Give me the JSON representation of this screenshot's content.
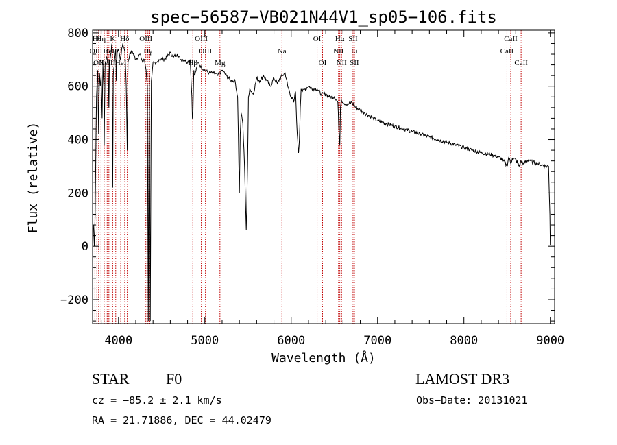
{
  "chart_data": {
    "type": "line",
    "title": "spec−56587−VB021N44V1_sp05−106.fits",
    "xlabel": "Wavelength (Å)",
    "ylabel": "Flux (relative)",
    "xlim": [
      3700,
      9050
    ],
    "ylim": [
      -290,
      810
    ],
    "xticks": [
      4000,
      5000,
      6000,
      7000,
      8000,
      9000
    ],
    "yticks": [
      -200,
      0,
      200,
      400,
      600,
      800
    ],
    "ytick_labels": [
      "−200",
      "0",
      "200",
      "400",
      "600",
      "800"
    ],
    "grid": false,
    "series": [
      {
        "name": "spectrum",
        "color": "#000000",
        "x": [
          3710,
          3720,
          3730,
          3745,
          3760,
          3770,
          3780,
          3790,
          3800,
          3810,
          3820,
          3830,
          3835,
          3845,
          3860,
          3880,
          3889,
          3895,
          3910,
          3925,
          3933,
          3940,
          3955,
          3968,
          3975,
          3985,
          4000,
          4020,
          4050,
          4075,
          4090,
          4102,
          4110,
          4130,
          4160,
          4200,
          4250,
          4280,
          4300,
          4320,
          4335,
          4340,
          4345,
          4352,
          4357,
          4362,
          4368,
          4380,
          4400,
          4430,
          4470,
          4520,
          4560,
          4600,
          4640,
          4680,
          4720,
          4760,
          4800,
          4830,
          4850,
          4856,
          4861,
          4866,
          4872,
          4885,
          4920,
          4960,
          5000,
          5050,
          5100,
          5150,
          5200,
          5250,
          5300,
          5350,
          5380,
          5400,
          5410,
          5420,
          5440,
          5460,
          5480,
          5495,
          5505,
          5520,
          5540,
          5560,
          5600,
          5640,
          5680,
          5720,
          5760,
          5800,
          5840,
          5870,
          5900,
          5930,
          5960,
          6000,
          6030,
          6050,
          6070,
          6085,
          6095,
          6105,
          6115,
          6130,
          6160,
          6200,
          6250,
          6300,
          6350,
          6400,
          6450,
          6500,
          6540,
          6555,
          6563,
          6570,
          6580,
          6600,
          6650,
          6700,
          6750,
          6800,
          6850,
          6900,
          6950,
          7000,
          7100,
          7200,
          7300,
          7400,
          7500,
          7600,
          7700,
          7800,
          7900,
          8000,
          8100,
          8200,
          8300,
          8400,
          8460,
          8498,
          8520,
          8542,
          8560,
          8600,
          8640,
          8662,
          8690,
          8750,
          8800,
          8850,
          8900,
          8950,
          8980,
          8990,
          8995,
          9000
        ],
        "y": [
          80,
          0,
          120,
          560,
          660,
          420,
          650,
          600,
          640,
          480,
          680,
          600,
          380,
          680,
          710,
          690,
          520,
          690,
          720,
          760,
          220,
          640,
          700,
          740,
          620,
          730,
          740,
          700,
          760,
          730,
          600,
          360,
          690,
          720,
          730,
          700,
          720,
          690,
          700,
          660,
          600,
          160,
          -280,
          300,
          640,
          200,
          -280,
          620,
          690,
          680,
          700,
          700,
          710,
          725,
          710,
          720,
          700,
          700,
          690,
          700,
          560,
          480,
          480,
          560,
          660,
          640,
          690,
          670,
          660,
          650,
          650,
          640,
          660,
          640,
          620,
          620,
          560,
          200,
          420,
          500,
          460,
          300,
          60,
          300,
          560,
          590,
          580,
          570,
          630,
          620,
          640,
          620,
          600,
          630,
          610,
          630,
          640,
          650,
          600,
          560,
          540,
          580,
          420,
          350,
          400,
          520,
          590,
          580,
          590,
          600,
          590,
          590,
          570,
          570,
          560,
          560,
          540,
          420,
          380,
          520,
          550,
          540,
          530,
          540,
          520,
          510,
          500,
          490,
          480,
          470,
          460,
          450,
          440,
          430,
          420,
          410,
          400,
          390,
          380,
          370,
          360,
          350,
          345,
          335,
          320,
          300,
          335,
          310,
          330,
          325,
          300,
          320,
          310,
          325,
          315,
          310,
          305,
          300,
          300,
          180,
          120,
          5
        ]
      }
    ],
    "lines": [
      {
        "x": 3727,
        "label": "OII",
        "row": 1
      },
      {
        "x": 3750,
        "label": "Hθ",
        "row": 0
      },
      {
        "x": 3770,
        "label": "OII",
        "row": 2
      },
      {
        "x": 3798,
        "label": "Hη",
        "row": 0
      },
      {
        "x": 3835,
        "label": "Hζ",
        "row": 1
      },
      {
        "x": 3869,
        "label": "NeIII",
        "row": 2
      },
      {
        "x": 3889,
        "label": "HeI",
        "row": 1
      },
      {
        "x": 3933,
        "label": "K",
        "row": 0
      },
      {
        "x": 3968,
        "label": "H",
        "row": 1
      },
      {
        "x": 4026,
        "label": "HeI",
        "row": 2
      },
      {
        "x": 4072,
        "label": "Hδ",
        "row": 0
      },
      {
        "x": 4102,
        "label": "",
        "row": 1
      },
      {
        "x": 4317,
        "label": "OIII",
        "row": 0
      },
      {
        "x": 4341,
        "label": "Hγ",
        "row": 1
      },
      {
        "x": 4363,
        "label": "",
        "row": 2
      },
      {
        "x": 4861,
        "label": "Hβ",
        "row": 2
      },
      {
        "x": 4959,
        "label": "OIII",
        "row": 0
      },
      {
        "x": 5007,
        "label": "OIII",
        "row": 1
      },
      {
        "x": 5175,
        "label": "Mg",
        "row": 2
      },
      {
        "x": 5893,
        "label": "Na",
        "row": 1
      },
      {
        "x": 6300,
        "label": "OI",
        "row": 0
      },
      {
        "x": 6363,
        "label": "OI",
        "row": 2
      },
      {
        "x": 6548,
        "label": "NII",
        "row": 1
      },
      {
        "x": 6563,
        "label": "Hα",
        "row": 0
      },
      {
        "x": 6583,
        "label": "NII",
        "row": 2
      },
      {
        "x": 6716,
        "label": "SII",
        "row": 0
      },
      {
        "x": 6731,
        "label": "Li",
        "row": 1
      },
      {
        "x": 6731,
        "label": "SII",
        "row": 2
      },
      {
        "x": 8498,
        "label": "CaII",
        "row": 1
      },
      {
        "x": 8542,
        "label": "CaII",
        "row": 0
      },
      {
        "x": 8662,
        "label": "CaII",
        "row": 2
      }
    ],
    "colors": {
      "spectrum": "#000000",
      "line_marker": "#c00000",
      "axes": "#000000"
    }
  },
  "info": {
    "class": "STAR",
    "subclass": "F0",
    "survey": "LAMOST DR3",
    "redshift": "cz = −85.2 ± 2.1 km/s",
    "obs_date": "Obs−Date: 20131021",
    "coords": "RA =  21.71886, DEC =  44.02479"
  }
}
